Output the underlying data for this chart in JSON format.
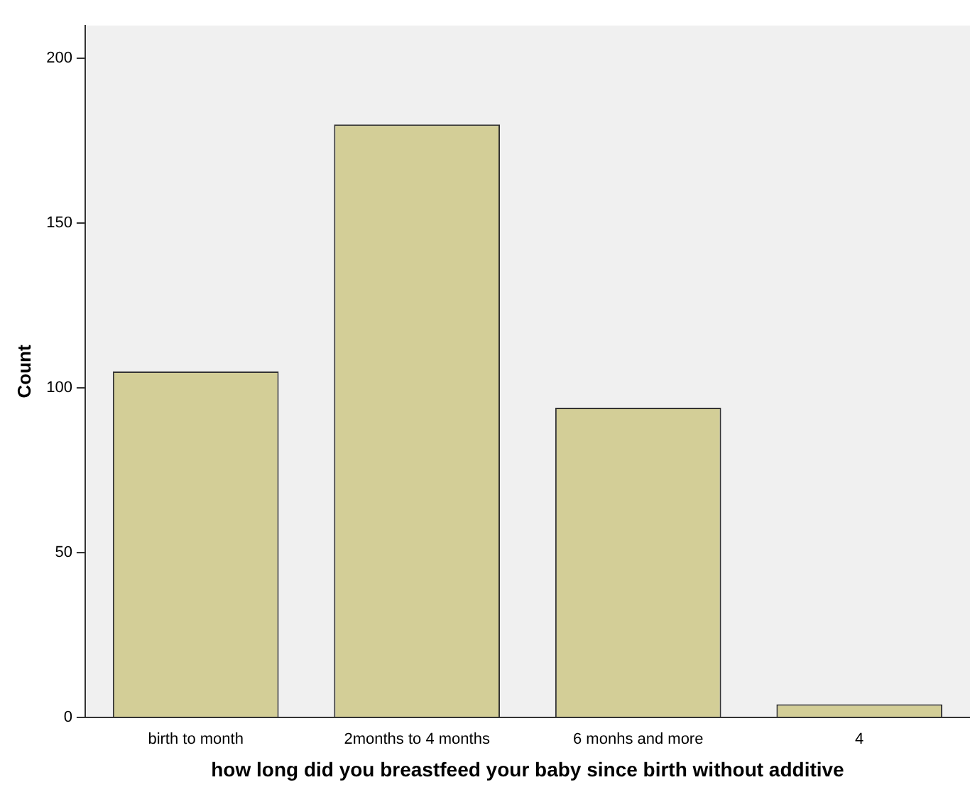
{
  "chart_data": {
    "type": "bar",
    "xlabel": "how long did you breastfeed your baby since birth without additive",
    "ylabel": "Count",
    "categories": [
      "birth to month",
      "2months to 4 months",
      "6 monhs and more",
      "4"
    ],
    "values": [
      105,
      180,
      94,
      4
    ],
    "color": "#d3ce97",
    "ylim": [
      0,
      210
    ],
    "yticks": [
      0,
      50,
      100,
      150,
      200
    ],
    "grid": false
  }
}
